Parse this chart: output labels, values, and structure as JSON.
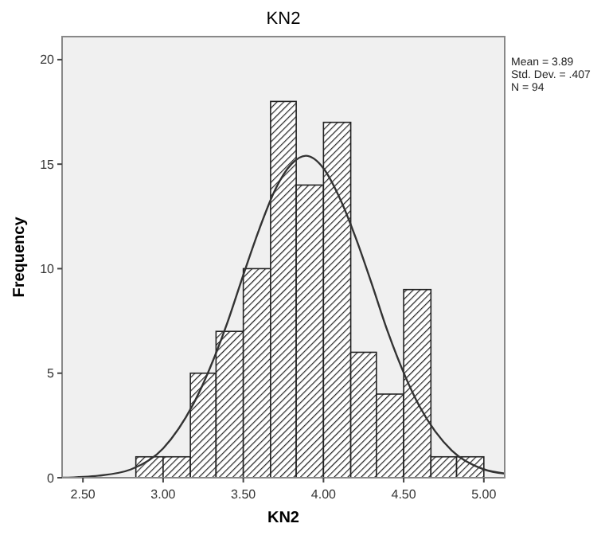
{
  "chart_data": {
    "type": "histogram",
    "title": "KN2",
    "xlabel": "KN2",
    "ylabel": "Frequency",
    "annotations": [
      "Mean = 3.89",
      "Std. Dev. = .407",
      "N = 94"
    ],
    "bins": [
      2.83,
      3.0,
      3.17,
      3.33,
      3.5,
      3.67,
      3.83,
      4.0,
      4.17,
      4.33,
      4.5,
      4.67,
      4.83,
      5.0
    ],
    "xlim": [
      2.37,
      5.13
    ],
    "ylim": [
      0,
      21.1
    ],
    "xticks": [
      {
        "value": 2.5,
        "label": "2.50"
      },
      {
        "value": 3,
        "label": "3.00"
      },
      {
        "value": 3.5,
        "label": "3.50"
      },
      {
        "value": 4,
        "label": "4.00"
      },
      {
        "value": 4.5,
        "label": "4.50"
      },
      {
        "value": 5,
        "label": "5.00"
      }
    ],
    "yticks": [
      0,
      5,
      10,
      15,
      20
    ],
    "grid": false,
    "series": [
      {
        "color": "#222222",
        "values": [
          1,
          1,
          5,
          7,
          10,
          18,
          14,
          17,
          6,
          4,
          9,
          1,
          1
        ]
      },
      {
        "type": "line",
        "color": "#333333",
        "x": [
          2.37,
          2.6,
          2.8,
          3.0,
          3.2,
          3.4,
          3.5,
          3.6,
          3.7,
          3.8,
          3.89,
          4.0,
          4.1,
          4.2,
          4.3,
          4.4,
          4.6,
          4.8,
          5.0,
          5.13
        ],
        "values": [
          0.0,
          0.1,
          0.4,
          1.4,
          3.7,
          7.4,
          9.7,
          11.9,
          13.8,
          15.0,
          15.4,
          14.8,
          13.4,
          11.5,
          9.3,
          7.0,
          3.4,
          1.3,
          0.4,
          0.2
        ]
      }
    ]
  }
}
